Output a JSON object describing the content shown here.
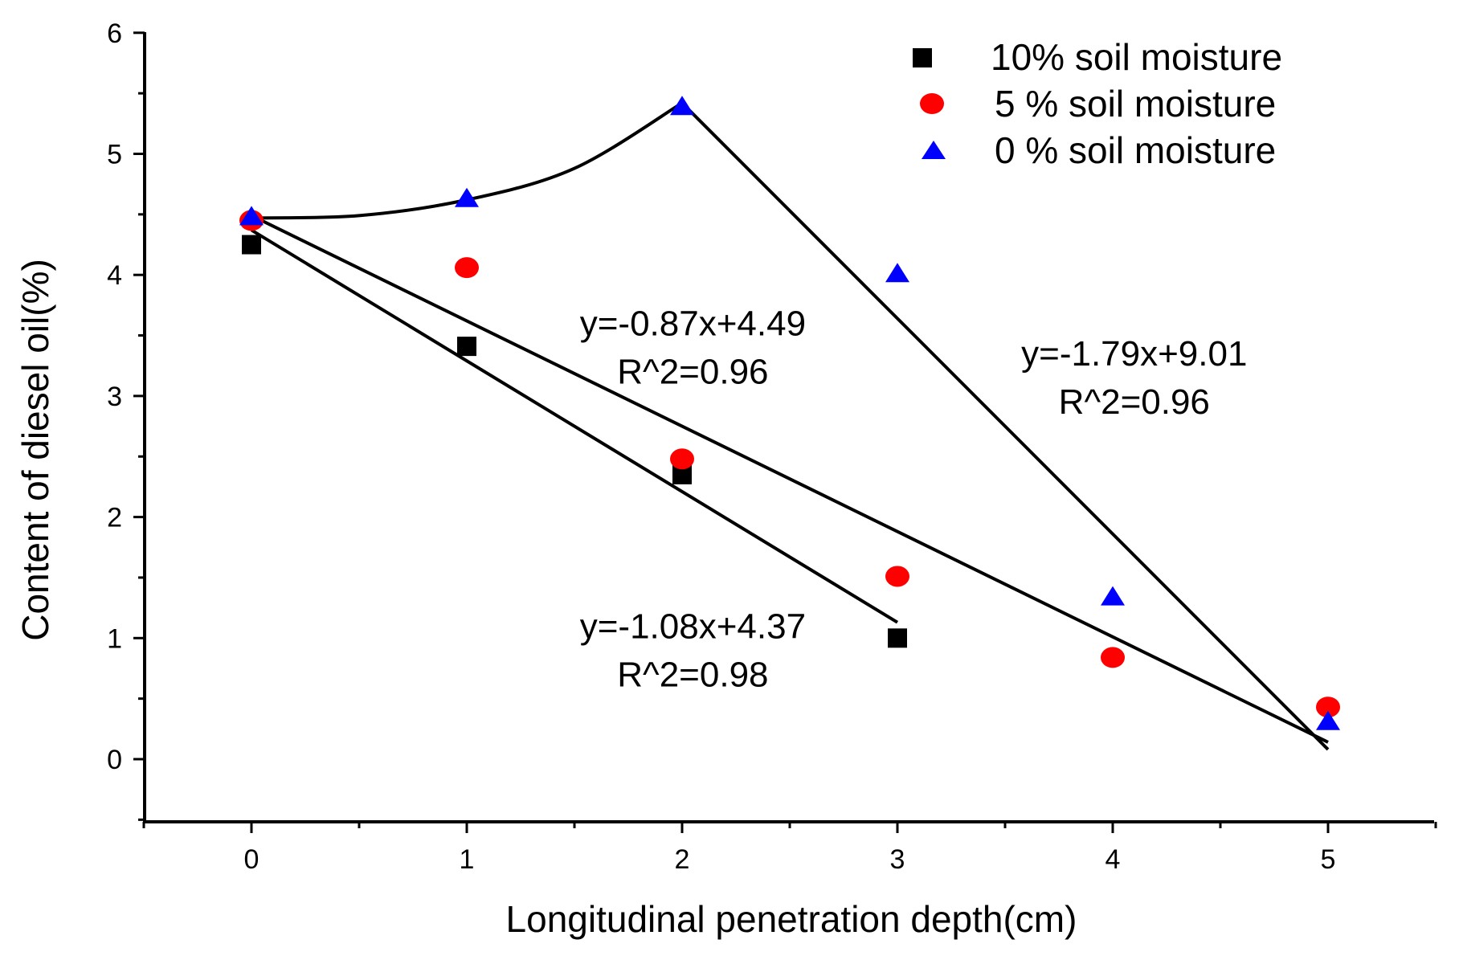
{
  "chart_data": {
    "type": "scatter",
    "title": "",
    "xlabel": "Longitudinal penetration depth(cm)",
    "ylabel": "Content of diesel oil(%)",
    "xlim": [
      -0.5,
      5.5
    ],
    "ylim": [
      -0.5,
      6
    ],
    "x_ticks": [
      0,
      1,
      2,
      3,
      4,
      5
    ],
    "y_ticks": [
      0,
      1,
      2,
      3,
      4,
      5,
      6
    ],
    "legend_position": "top-right",
    "series": [
      {
        "name": "10% soil moisture",
        "marker": "square",
        "color": "#000000",
        "x": [
          0,
          1,
          2,
          3
        ],
        "y": [
          4.25,
          3.41,
          2.35,
          1.0
        ]
      },
      {
        "name": "5 % soil moisture",
        "marker": "circle",
        "color": "#ff0000",
        "x": [
          0,
          1,
          2,
          3,
          4,
          5
        ],
        "y": [
          4.45,
          4.06,
          2.48,
          1.51,
          0.84,
          0.43
        ]
      },
      {
        "name": "0 % soil moisture",
        "marker": "triangle",
        "color": "#0000ff",
        "x": [
          0,
          1,
          2,
          3,
          4,
          5
        ],
        "y": [
          4.47,
          4.62,
          5.38,
          4.0,
          1.33,
          0.3
        ]
      }
    ],
    "fits": [
      {
        "id": "fit-10",
        "kind": "line",
        "x": [
          0,
          3
        ],
        "y": [
          4.37,
          1.13
        ]
      },
      {
        "id": "fit-5",
        "kind": "line",
        "x": [
          0,
          5
        ],
        "y": [
          4.49,
          0.14
        ]
      },
      {
        "id": "fit-0-rise",
        "kind": "curve",
        "x": [
          0,
          0.5,
          1,
          1.5,
          2
        ],
        "y": [
          4.47,
          4.49,
          4.62,
          4.88,
          5.42
        ]
      },
      {
        "id": "fit-0-fall",
        "kind": "line",
        "x": [
          2,
          5
        ],
        "y": [
          5.42,
          0.08
        ]
      }
    ],
    "annotations": [
      {
        "id": "eq-5",
        "lines": [
          "y=-0.87x+4.49",
          "R^2=0.96"
        ],
        "anchor_x": 2.05,
        "anchor_y": 3.5
      },
      {
        "id": "eq-0",
        "lines": [
          "y=-1.79x+9.01",
          "R^2=0.96"
        ],
        "anchor_x": 4.1,
        "anchor_y": 3.25
      },
      {
        "id": "eq-10",
        "lines": [
          "y=-1.08x+4.37",
          "R^2=0.98"
        ],
        "anchor_x": 2.05,
        "anchor_y": 1.0
      }
    ]
  }
}
